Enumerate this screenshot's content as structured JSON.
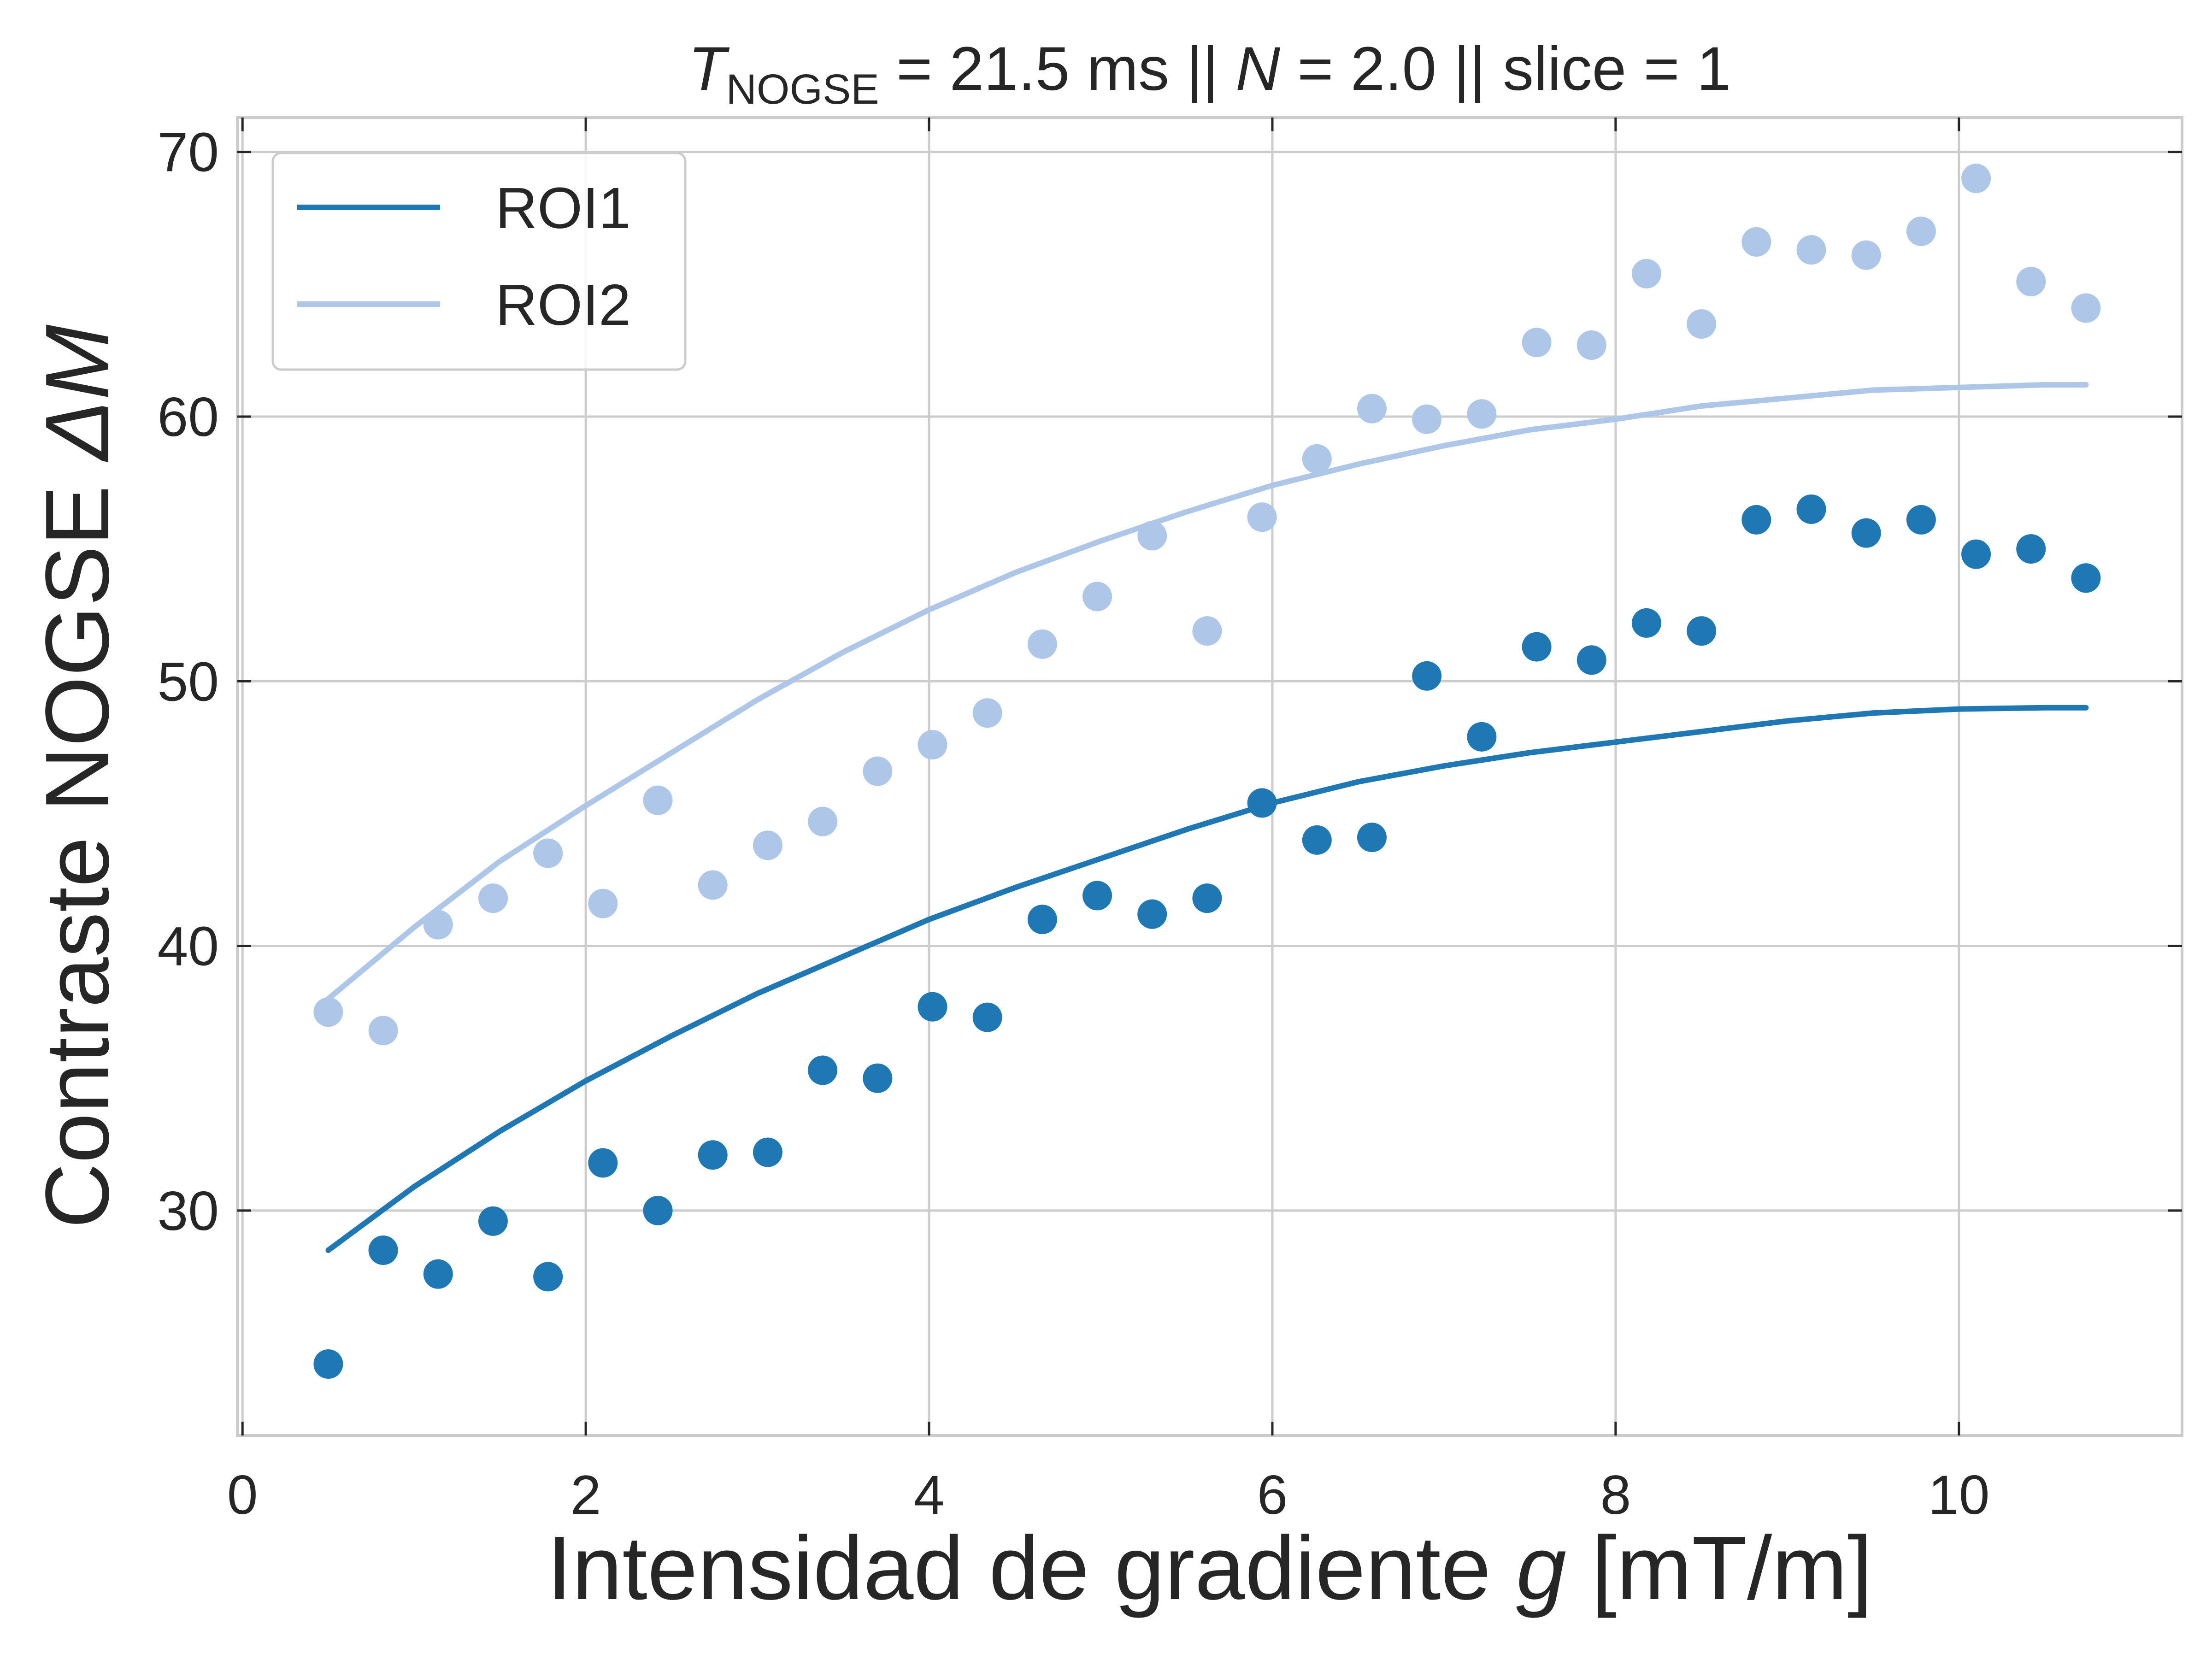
{
  "chart_data": {
    "type": "scatter",
    "title": {
      "t_symbol": "T",
      "t_subscript": "NOGSE",
      "t_value": " = 21.5 ms  ||  ",
      "n_symbol": "N",
      "n_value": " = 2.0 || slice = 1"
    },
    "xlabel": {
      "text": "Intensidad de gradiente ",
      "symbol": "g",
      "unit": " [mT/m]"
    },
    "ylabel": {
      "text": "Contraste NOGSE ",
      "symbol": "ΔM"
    },
    "xlim": [
      -0.03,
      11.3
    ],
    "ylim": [
      21.5,
      71.3
    ],
    "x_ticks": [
      0,
      2,
      4,
      6,
      8,
      10
    ],
    "y_ticks": [
      30,
      40,
      50,
      60,
      70
    ],
    "x_tick_labels": [
      "0",
      "2",
      "4",
      "6",
      "8",
      "10"
    ],
    "y_tick_labels": [
      "30",
      "40",
      "50",
      "60",
      "70"
    ],
    "grid": true,
    "legend": {
      "position": "top-left",
      "style": "line"
    },
    "series": [
      {
        "name": "ROI1",
        "color": "#1f77b4",
        "points": [
          [
            0.5,
            24.2
          ],
          [
            0.82,
            28.5
          ],
          [
            1.14,
            27.6
          ],
          [
            1.46,
            29.6
          ],
          [
            1.78,
            27.5
          ],
          [
            2.1,
            31.8
          ],
          [
            2.42,
            30.0
          ],
          [
            2.74,
            32.1
          ],
          [
            3.06,
            32.2
          ],
          [
            3.38,
            35.3
          ],
          [
            3.7,
            35.0
          ],
          [
            4.02,
            37.7
          ],
          [
            4.34,
            37.3
          ],
          [
            4.66,
            41.0
          ],
          [
            4.98,
            41.9
          ],
          [
            5.3,
            41.2
          ],
          [
            5.62,
            41.8
          ],
          [
            5.94,
            45.4
          ],
          [
            6.26,
            44.0
          ],
          [
            6.58,
            44.1
          ],
          [
            6.9,
            50.2
          ],
          [
            7.22,
            47.9
          ],
          [
            7.54,
            51.3
          ],
          [
            7.86,
            50.8
          ],
          [
            8.18,
            52.2
          ],
          [
            8.5,
            51.9
          ],
          [
            8.82,
            56.1
          ],
          [
            9.14,
            56.5
          ],
          [
            9.46,
            55.6
          ],
          [
            9.78,
            56.1
          ],
          [
            10.1,
            54.8
          ],
          [
            10.42,
            55.0
          ],
          [
            10.74,
            53.9
          ]
        ],
        "fit": [
          [
            0.5,
            28.5
          ],
          [
            1.0,
            30.9
          ],
          [
            1.5,
            33.0
          ],
          [
            2.0,
            34.9
          ],
          [
            2.5,
            36.6
          ],
          [
            3.0,
            38.2
          ],
          [
            3.5,
            39.6
          ],
          [
            4.0,
            41.0
          ],
          [
            4.5,
            42.2
          ],
          [
            5.0,
            43.3
          ],
          [
            5.5,
            44.4
          ],
          [
            6.0,
            45.4
          ],
          [
            6.5,
            46.2
          ],
          [
            7.0,
            46.8
          ],
          [
            7.5,
            47.3
          ],
          [
            8.0,
            47.7
          ],
          [
            8.5,
            48.1
          ],
          [
            9.0,
            48.5
          ],
          [
            9.5,
            48.8
          ],
          [
            10.0,
            48.95
          ],
          [
            10.5,
            49.0
          ],
          [
            10.74,
            49.0
          ]
        ]
      },
      {
        "name": "ROI2",
        "color": "#aec7e8",
        "points": [
          [
            0.5,
            37.5
          ],
          [
            0.82,
            36.8
          ],
          [
            1.14,
            40.8
          ],
          [
            1.46,
            41.8
          ],
          [
            1.78,
            43.5
          ],
          [
            2.1,
            41.6
          ],
          [
            2.42,
            45.5
          ],
          [
            2.74,
            42.3
          ],
          [
            3.06,
            43.8
          ],
          [
            3.38,
            44.7
          ],
          [
            3.7,
            46.6
          ],
          [
            4.02,
            47.6
          ],
          [
            4.34,
            48.8
          ],
          [
            4.66,
            51.4
          ],
          [
            4.98,
            53.2
          ],
          [
            5.3,
            55.5
          ],
          [
            5.62,
            51.9
          ],
          [
            5.94,
            56.2
          ],
          [
            6.26,
            58.4
          ],
          [
            6.58,
            60.3
          ],
          [
            6.9,
            59.9
          ],
          [
            7.22,
            60.1
          ],
          [
            7.54,
            62.8
          ],
          [
            7.86,
            62.7
          ],
          [
            8.18,
            65.4
          ],
          [
            8.5,
            63.5
          ],
          [
            8.82,
            66.6
          ],
          [
            9.14,
            66.3
          ],
          [
            9.46,
            66.1
          ],
          [
            9.78,
            67.0
          ],
          [
            10.1,
            69.0
          ],
          [
            10.42,
            65.1
          ],
          [
            10.74,
            64.1
          ]
        ],
        "fit": [
          [
            0.5,
            38.0
          ],
          [
            1.0,
            40.7
          ],
          [
            1.5,
            43.2
          ],
          [
            2.0,
            45.3
          ],
          [
            2.5,
            47.3
          ],
          [
            3.0,
            49.3
          ],
          [
            3.5,
            51.1
          ],
          [
            4.0,
            52.7
          ],
          [
            4.5,
            54.1
          ],
          [
            5.0,
            55.3
          ],
          [
            5.5,
            56.4
          ],
          [
            6.0,
            57.4
          ],
          [
            6.5,
            58.2
          ],
          [
            7.0,
            58.9
          ],
          [
            7.5,
            59.5
          ],
          [
            8.0,
            59.9
          ],
          [
            8.5,
            60.4
          ],
          [
            9.0,
            60.7
          ],
          [
            9.5,
            61.0
          ],
          [
            10.0,
            61.1
          ],
          [
            10.5,
            61.2
          ],
          [
            10.74,
            61.2
          ]
        ]
      }
    ]
  }
}
